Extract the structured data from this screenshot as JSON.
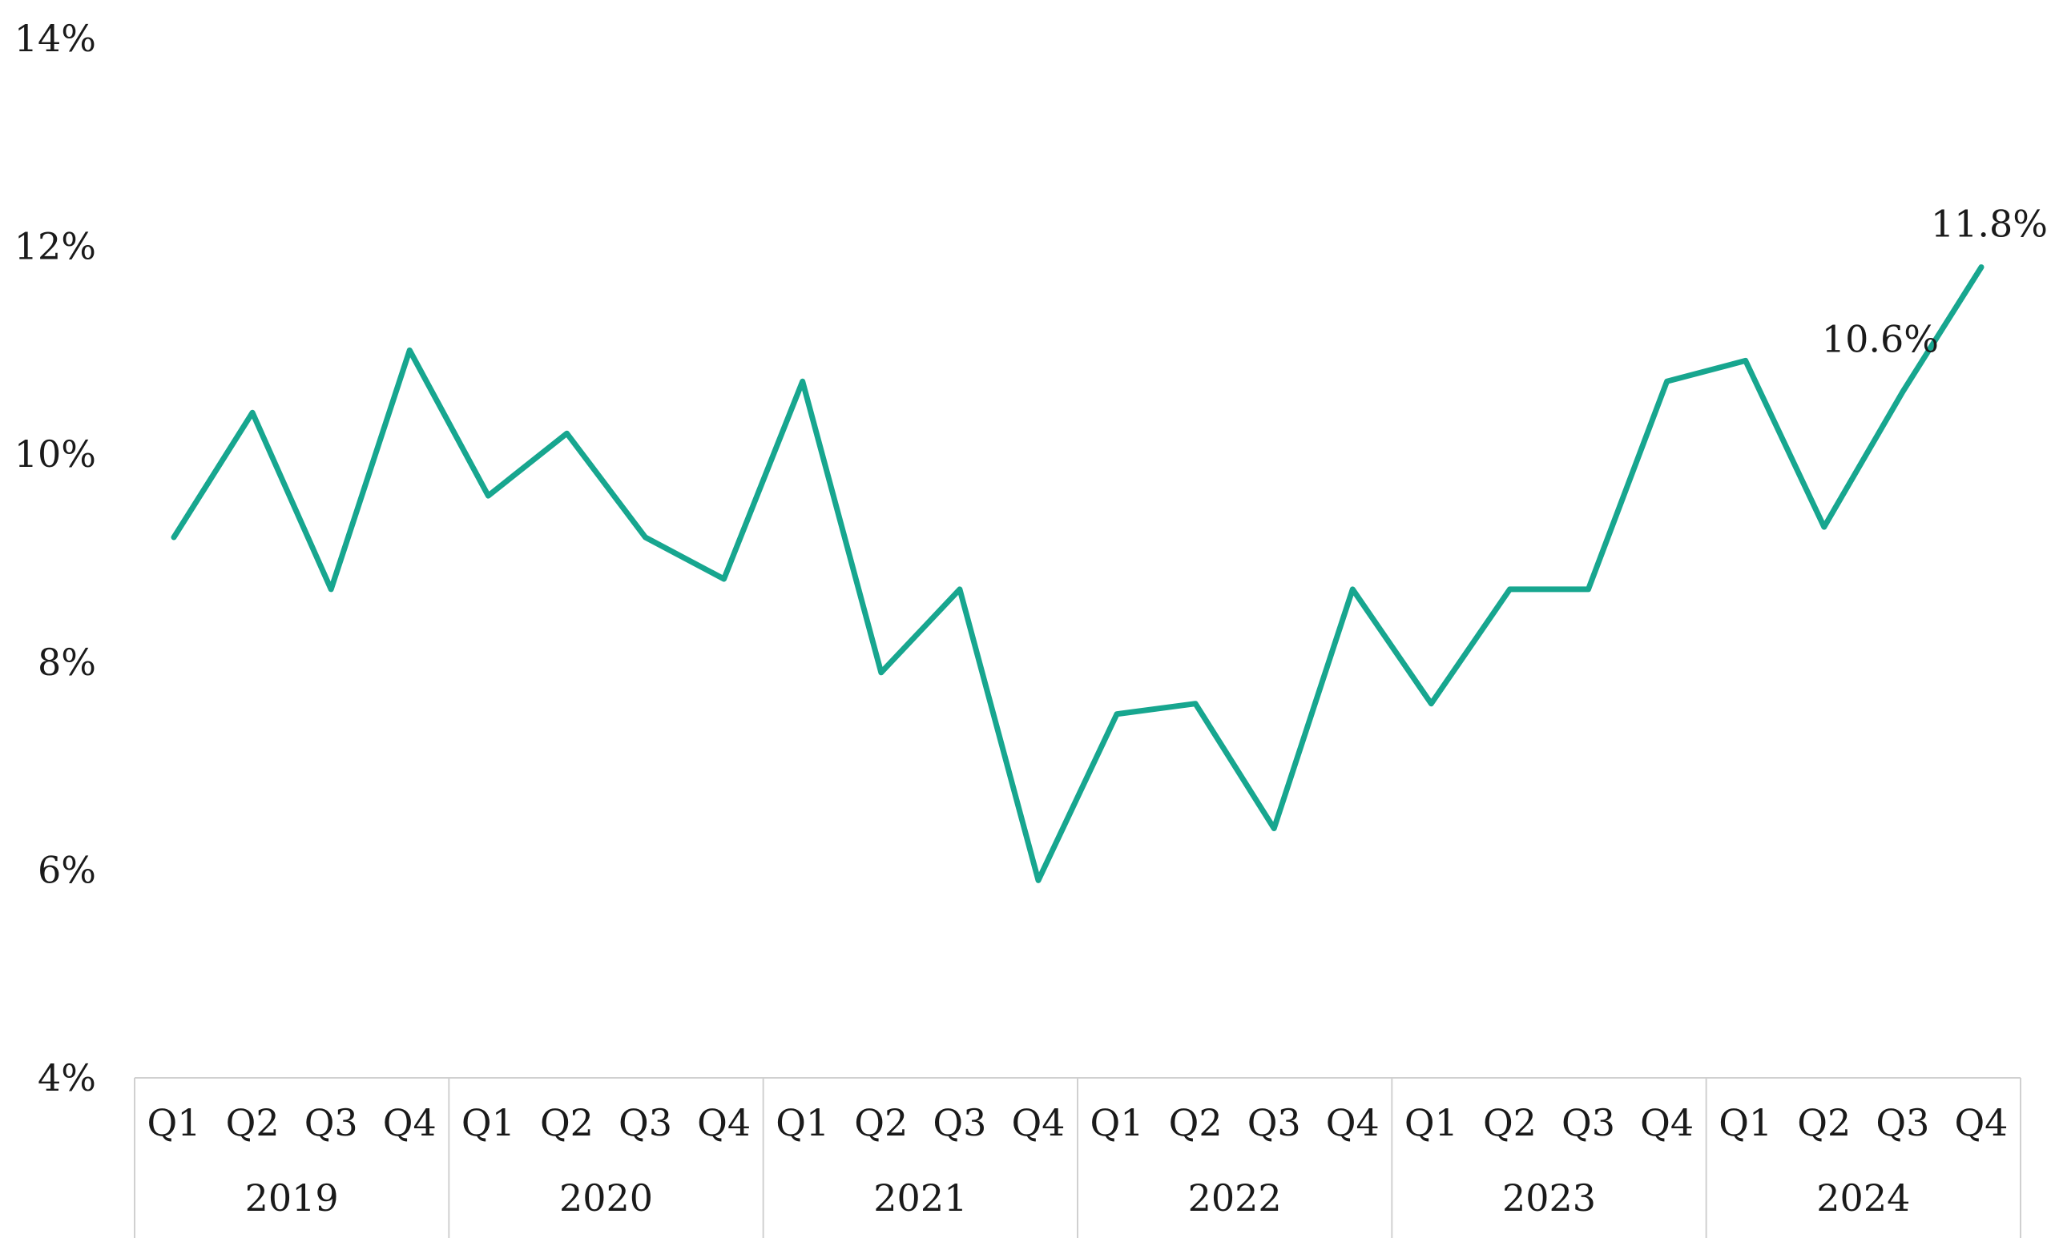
{
  "chart_data": {
    "type": "line",
    "title": "",
    "xlabel": "",
    "ylabel": "",
    "ylim": [
      4,
      14
    ],
    "y_ticks": [
      4,
      6,
      8,
      10,
      12,
      14
    ],
    "y_tick_labels": [
      "4%",
      "6%",
      "8%",
      "10%",
      "12%",
      "14%"
    ],
    "grid": false,
    "legend": "none",
    "line_color": "#17a68f",
    "quarter_labels": [
      "Q1",
      "Q2",
      "Q3",
      "Q4"
    ],
    "years": [
      "2019",
      "2020",
      "2021",
      "2022",
      "2023",
      "2024"
    ],
    "categories": [
      "2019 Q1",
      "2019 Q2",
      "2019 Q3",
      "2019 Q4",
      "2020 Q1",
      "2020 Q2",
      "2020 Q3",
      "2020 Q4",
      "2021 Q1",
      "2021 Q2",
      "2021 Q3",
      "2021 Q4",
      "2022 Q1",
      "2022 Q2",
      "2022 Q3",
      "2022 Q4",
      "2023 Q1",
      "2023 Q2",
      "2023 Q3",
      "2023 Q4",
      "2024 Q1",
      "2024 Q2",
      "2024 Q3",
      "2024 Q4"
    ],
    "series": [
      {
        "values": [
          9.2,
          10.4,
          8.7,
          11.0,
          9.6,
          10.2,
          9.2,
          8.8,
          10.7,
          7.9,
          8.7,
          5.9,
          7.5,
          7.6,
          6.4,
          8.7,
          7.6,
          8.7,
          8.7,
          10.7,
          10.9,
          9.3,
          10.6,
          11.8
        ]
      }
    ],
    "data_labels": [
      {
        "index": 22,
        "text": "10.6%"
      },
      {
        "index": 23,
        "text": "11.8%"
      }
    ]
  }
}
